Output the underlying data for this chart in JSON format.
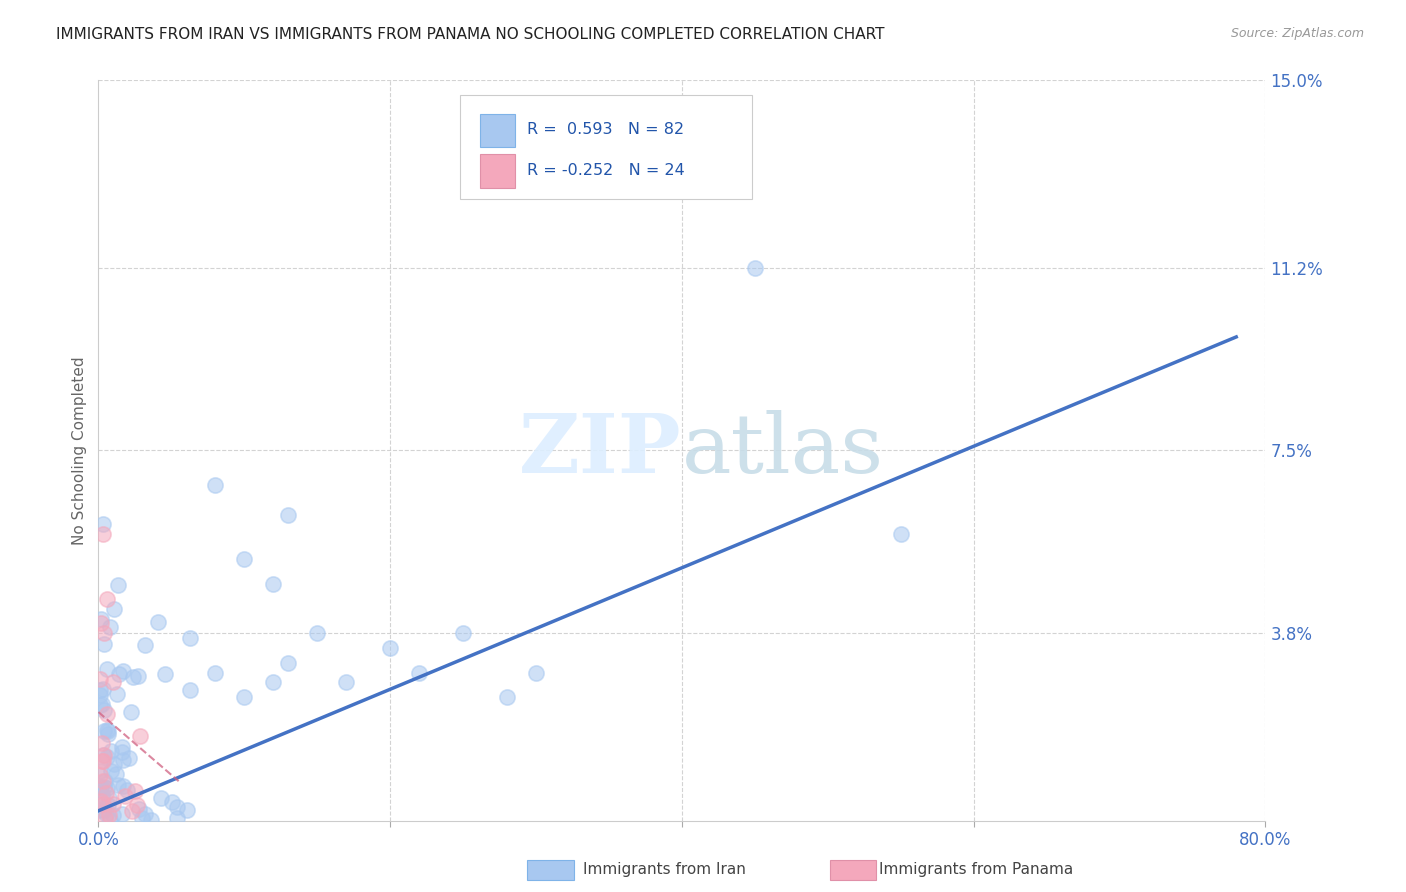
{
  "title": "IMMIGRANTS FROM IRAN VS IMMIGRANTS FROM PANAMA NO SCHOOLING COMPLETED CORRELATION CHART",
  "source": "Source: ZipAtlas.com",
  "ylabel": "No Schooling Completed",
  "xlim": [
    0.0,
    0.8
  ],
  "ylim": [
    0.0,
    0.15
  ],
  "ytick_positions": [
    0.0,
    0.038,
    0.075,
    0.112,
    0.15
  ],
  "ytick_labels": [
    "",
    "3.8%",
    "7.5%",
    "11.2%",
    "15.0%"
  ],
  "xtick_positions": [
    0.0,
    0.2,
    0.4,
    0.6,
    0.8
  ],
  "xtick_labels": [
    "0.0%",
    "",
    "",
    "",
    "80.0%"
  ],
  "iran_color": "#a8c8f0",
  "iran_line_color": "#4472c4",
  "panama_color": "#f4a8bc",
  "panama_line_color": "#d06080",
  "iran_R": 0.593,
  "iran_N": 82,
  "panama_R": -0.252,
  "panama_N": 24,
  "iran_line_x0": 0.0,
  "iran_line_y0": 0.002,
  "iran_line_x1": 0.78,
  "iran_line_y1": 0.098,
  "panama_line_x0": 0.0,
  "panama_line_y0": 0.022,
  "panama_line_x1": 0.055,
  "panama_line_y1": 0.008,
  "grid_color": "#c8c8c8",
  "background_color": "#ffffff",
  "tick_label_color": "#4472c4",
  "title_color": "#222222",
  "title_fontsize": 11,
  "axis_label_color": "#666666",
  "legend_iran_color": "#a8c8f0",
  "legend_panama_color": "#f4a8bc",
  "watermark_color": "#ddeeff",
  "scatter_marker_size": 120
}
